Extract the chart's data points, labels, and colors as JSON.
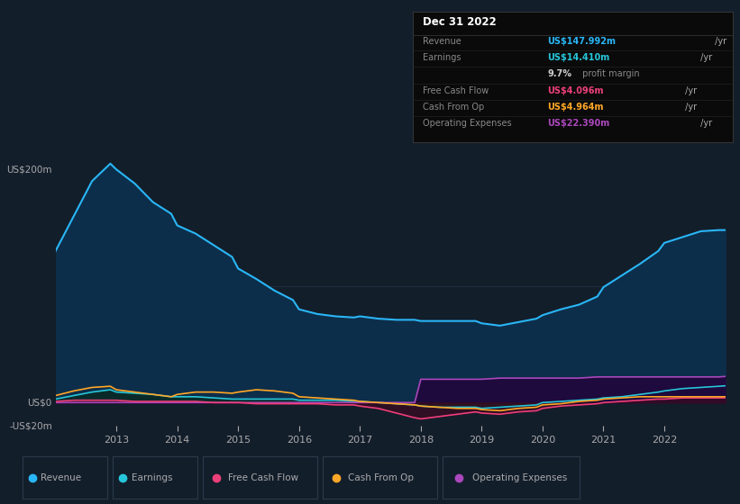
{
  "bg_color": "#131e2b",
  "plot_bg_color": "#131e2b",
  "years": [
    2012.0,
    2012.3,
    2012.6,
    2012.9,
    2013.0,
    2013.3,
    2013.6,
    2013.9,
    2014.0,
    2014.3,
    2014.6,
    2014.9,
    2015.0,
    2015.3,
    2015.6,
    2015.9,
    2016.0,
    2016.3,
    2016.6,
    2016.9,
    2017.0,
    2017.3,
    2017.6,
    2017.9,
    2018.0,
    2018.3,
    2018.6,
    2018.9,
    2019.0,
    2019.3,
    2019.6,
    2019.9,
    2020.0,
    2020.3,
    2020.6,
    2020.9,
    2021.0,
    2021.3,
    2021.6,
    2021.9,
    2022.0,
    2022.3,
    2022.6,
    2022.9,
    2023.0
  ],
  "revenue": [
    130,
    160,
    190,
    205,
    200,
    188,
    172,
    162,
    152,
    145,
    135,
    125,
    115,
    106,
    96,
    88,
    80,
    76,
    74,
    73,
    74,
    72,
    71,
    71,
    70,
    70,
    70,
    70,
    68,
    66,
    69,
    72,
    75,
    80,
    84,
    91,
    99,
    109,
    119,
    130,
    137,
    142,
    147,
    148,
    148
  ],
  "earnings": [
    3,
    6,
    9,
    11,
    9,
    8,
    7,
    5,
    5,
    5,
    4,
    3,
    3,
    3,
    3,
    3,
    2,
    2,
    2,
    1,
    1,
    0,
    -1,
    -2,
    -3,
    -4,
    -4,
    -4,
    -5,
    -4,
    -3,
    -2,
    0,
    1,
    2,
    3,
    4,
    5,
    7,
    9,
    10,
    12,
    13,
    14,
    14.4
  ],
  "free_cash_flow": [
    1,
    2,
    2,
    2,
    2,
    1,
    1,
    1,
    1,
    1,
    0,
    0,
    0,
    -1,
    -1,
    -1,
    -1,
    -1,
    -2,
    -2,
    -3,
    -5,
    -9,
    -13,
    -14,
    -12,
    -10,
    -8,
    -9,
    -10,
    -8,
    -7,
    -5,
    -3,
    -2,
    -1,
    0,
    1,
    2,
    3,
    3,
    4,
    4,
    4,
    4.1
  ],
  "cash_from_op": [
    6,
    10,
    13,
    14,
    11,
    9,
    7,
    5,
    7,
    9,
    9,
    8,
    9,
    11,
    10,
    8,
    5,
    4,
    3,
    2,
    1,
    0,
    -1,
    -2,
    -3,
    -4,
    -5,
    -5,
    -6,
    -7,
    -5,
    -4,
    -2,
    -1,
    1,
    2,
    3,
    4,
    5,
    5,
    5,
    5,
    5,
    5,
    5.0
  ],
  "op_expenses": [
    0,
    0,
    0,
    0,
    0,
    0,
    0,
    0,
    0,
    0,
    0,
    0,
    0,
    0,
    0,
    0,
    0,
    0,
    0,
    0,
    0,
    0,
    0,
    0,
    20,
    20,
    20,
    20,
    20,
    21,
    21,
    21,
    21,
    21,
    21,
    22,
    22,
    22,
    22,
    22,
    22,
    22,
    22,
    22,
    22.4
  ],
  "revenue_color": "#29b6f6",
  "revenue_fill": "#0d2e4a",
  "earnings_color": "#26c6da",
  "earnings_fill": "#0a2a2a",
  "fcf_color": "#ec407a",
  "cash_op_color": "#ffa726",
  "op_exp_color": "#ab47bc",
  "op_exp_fill": "#1e0a3c",
  "grid_color": "#1e2e3e",
  "text_color": "#aaaaaa",
  "ylim": [
    -20,
    220
  ],
  "xtick_start": 2012.0,
  "xtick_end": 2023.0,
  "xticks": [
    2013,
    2014,
    2015,
    2016,
    2017,
    2018,
    2019,
    2020,
    2021,
    2022
  ],
  "legend_items": [
    "Revenue",
    "Earnings",
    "Free Cash Flow",
    "Cash From Op",
    "Operating Expenses"
  ],
  "legend_colors": [
    "#29b6f6",
    "#26c6da",
    "#ec407a",
    "#ffa726",
    "#ab47bc"
  ],
  "info_box": {
    "title": "Dec 31 2022",
    "rows": [
      {
        "label": "Revenue",
        "value": "US$147.992m",
        "suffix": " /yr",
        "value_color": "#29b6f6"
      },
      {
        "label": "Earnings",
        "value": "US$14.410m",
        "suffix": " /yr",
        "value_color": "#26c6da"
      },
      {
        "label": "",
        "value": "9.7%",
        "suffix": " profit margin",
        "value_color": "#cccccc"
      },
      {
        "label": "Free Cash Flow",
        "value": "US$4.096m",
        "suffix": " /yr",
        "value_color": "#ec407a"
      },
      {
        "label": "Cash From Op",
        "value": "US$4.964m",
        "suffix": " /yr",
        "value_color": "#ffa726"
      },
      {
        "label": "Operating Expenses",
        "value": "US$22.390m",
        "suffix": " /yr",
        "value_color": "#ab47bc"
      }
    ]
  }
}
